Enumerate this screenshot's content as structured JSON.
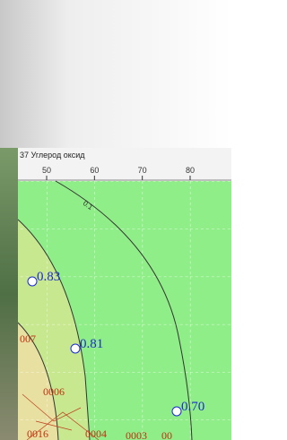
{
  "map": {
    "layer_title": "37 Углерод оксид",
    "ruler_ticks": [
      50,
      60,
      70,
      80
    ],
    "points": [
      {
        "label": "0.83"
      },
      {
        "label": "0.81"
      },
      {
        "label": "0.70"
      }
    ],
    "contour_labels": [
      "0.1"
    ],
    "red_labels": [
      "007",
      "0006",
      "0016",
      "0004",
      "0003",
      "00"
    ]
  }
}
